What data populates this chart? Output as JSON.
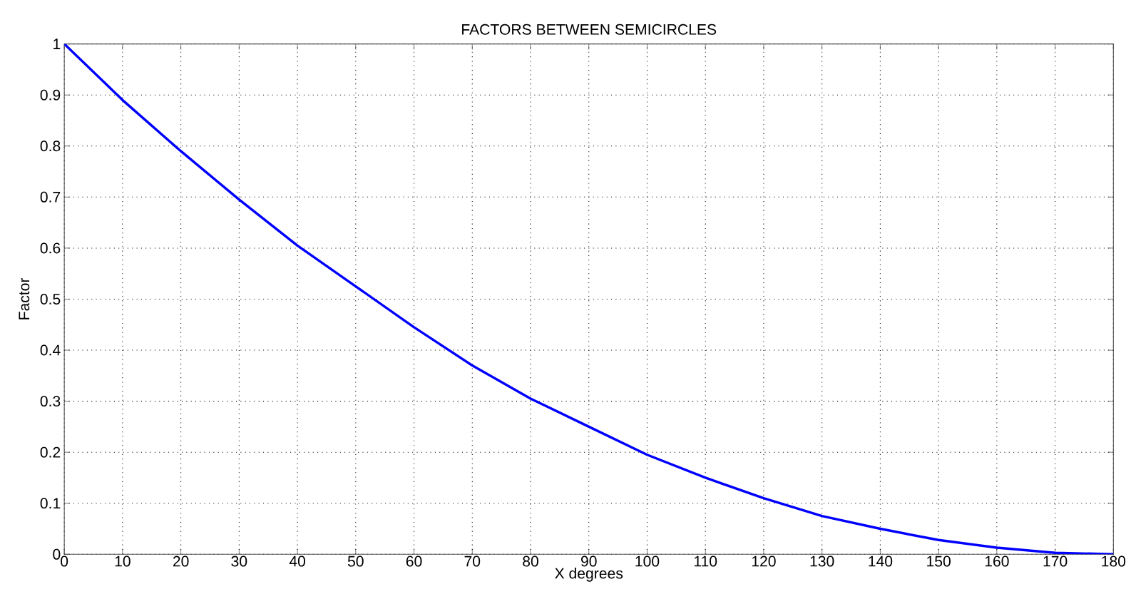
{
  "chart_data": {
    "type": "line",
    "title": "FACTORS BETWEEN SEMICIRCLES",
    "xlabel": "X degrees",
    "ylabel": "Factor",
    "x": [
      0,
      10,
      20,
      30,
      40,
      50,
      60,
      70,
      80,
      90,
      100,
      110,
      120,
      130,
      140,
      150,
      160,
      170,
      180
    ],
    "series": [
      {
        "color": "#0000ff",
        "values": [
          1,
          0.89,
          0.79,
          0.695,
          0.605,
          0.525,
          0.445,
          0.37,
          0.305,
          0.25,
          0.195,
          0.15,
          0.11,
          0.075,
          0.05,
          0.028,
          0.013,
          0.003,
          0
        ]
      }
    ],
    "xlim": [
      0,
      180
    ],
    "ylim": [
      0,
      1
    ],
    "xticks": [
      0,
      10,
      20,
      30,
      40,
      50,
      60,
      70,
      80,
      90,
      100,
      110,
      120,
      130,
      140,
      150,
      160,
      170,
      180
    ],
    "yticks": [
      0,
      0.1,
      0.2,
      0.3,
      0.4,
      0.5,
      0.6,
      0.7,
      0.8,
      0.9,
      1
    ],
    "grid": true,
    "marker": "none",
    "line_style": "solid"
  }
}
